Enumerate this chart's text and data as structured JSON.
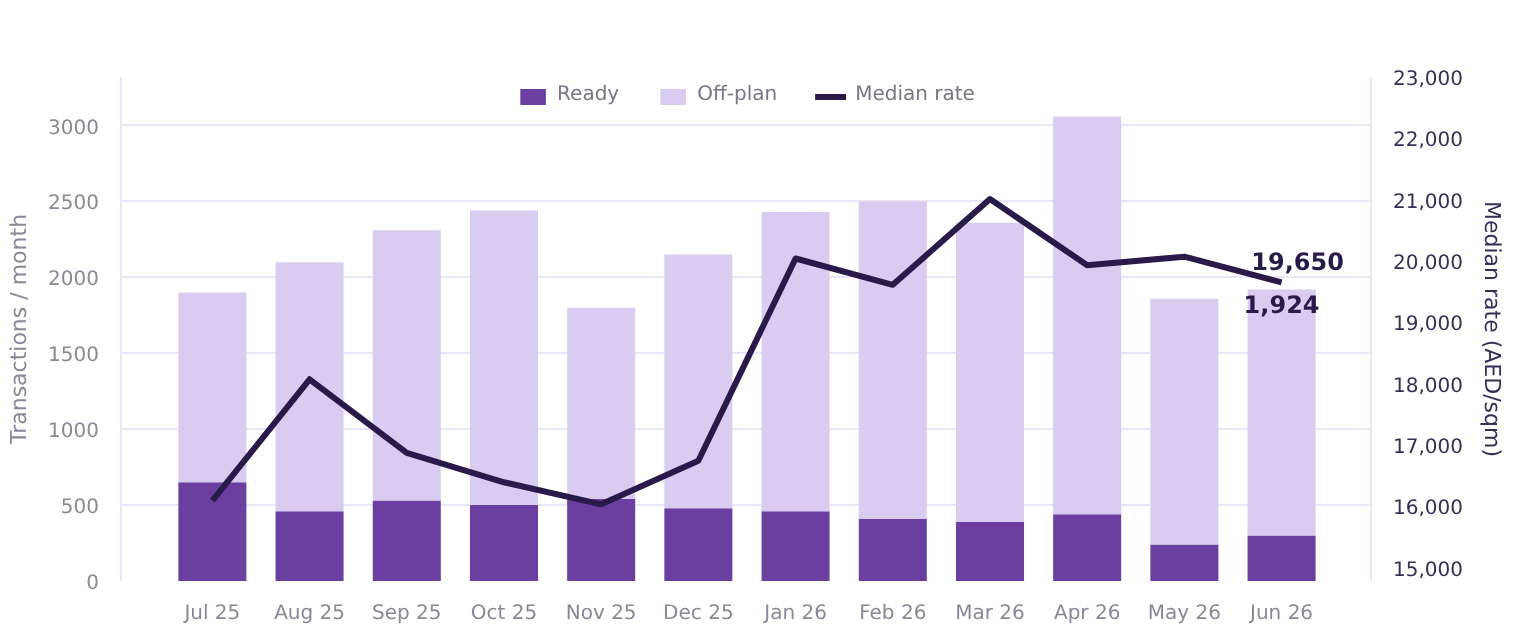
{
  "chart_data": {
    "type": "bar",
    "stacked": true,
    "categories": [
      "Jul 25",
      "Aug 25",
      "Sep 25",
      "Oct 25",
      "Nov 25",
      "Dec 25",
      "Jan 26",
      "Feb 26",
      "Mar 26",
      "Apr 26",
      "May 26",
      "Jun 26"
    ],
    "series": [
      {
        "name": "Ready",
        "color": "#6b3fa0",
        "values": [
          650,
          460,
          530,
          500,
          540,
          480,
          460,
          410,
          390,
          440,
          240,
          300
        ]
      },
      {
        "name": "Off-plan",
        "color": "#d9ccf0",
        "values": [
          1250,
          1640,
          1780,
          1940,
          1260,
          1670,
          1970,
          2090,
          1970,
          2620,
          1620,
          1620
        ]
      },
      {
        "name": "Median rate",
        "type": "line",
        "axis": "y2",
        "color": "#2a1a4a",
        "values": [
          16090,
          18070,
          16870,
          16390,
          16030,
          16740,
          20040,
          19610,
          21010,
          19930,
          20070,
          19650
        ]
      }
    ],
    "ylabel": "Transactions / month",
    "y2label": "Median rate (AED/sqm)",
    "ylim": [
      0,
      3320
    ],
    "yticks": [
      0,
      500,
      1000,
      1500,
      2000,
      2500,
      3000
    ],
    "y2lim": [
      14780,
      23000
    ],
    "y2ticks": [
      {
        "value": 15000,
        "label": "15,000"
      },
      {
        "value": 16000,
        "label": "16,000"
      },
      {
        "value": 17000,
        "label": "17,000"
      },
      {
        "value": 18000,
        "label": "18,000"
      },
      {
        "value": 19000,
        "label": "19,000"
      },
      {
        "value": 20000,
        "label": "20,000"
      },
      {
        "value": 21000,
        "label": "21,000"
      },
      {
        "value": 22000,
        "label": "22,000"
      },
      {
        "value": 23000,
        "label": "23,000"
      }
    ],
    "annotations": [
      "19,650",
      {
        "text": "1,924",
        "x": "Jun 26",
        "y": 1924
      }
    ],
    "grid": "y",
    "legend": "top"
  }
}
